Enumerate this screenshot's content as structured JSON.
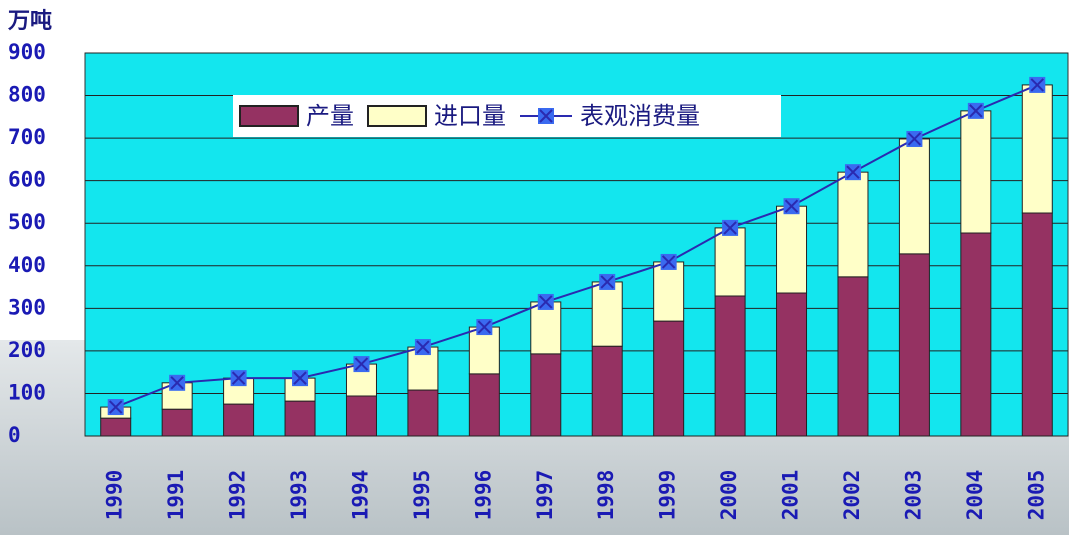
{
  "chart_data": {
    "type": "bar",
    "y_label": "万吨",
    "categories": [
      "1990",
      "1991",
      "1992",
      "1993",
      "1994",
      "1995",
      "1996",
      "1997",
      "1998",
      "1999",
      "2000",
      "2001",
      "2002",
      "2003",
      "2004",
      "2005"
    ],
    "series": [
      {
        "name": "产量",
        "type": "bar",
        "color": "#953262",
        "values": [
          42,
          63,
          75,
          82,
          94,
          108,
          146,
          193,
          211,
          270,
          329,
          336,
          374,
          428,
          477,
          524
        ]
      },
      {
        "name": "进口量",
        "type": "bar",
        "color": "#ffffc8",
        "values": [
          26,
          62,
          61,
          54,
          75,
          101,
          110,
          122,
          151,
          139,
          160,
          204,
          246,
          270,
          287,
          301
        ]
      },
      {
        "name": "表观消费量",
        "type": "line",
        "color": "#2a2ab0",
        "marker_color": "#3a6af0",
        "values": [
          68,
          125,
          136,
          136,
          169,
          209,
          256,
          315,
          362,
          409,
          489,
          540,
          620,
          698,
          764,
          825
        ]
      }
    ],
    "ylim": [
      0,
      900
    ],
    "yticks": [
      0,
      100,
      200,
      300,
      400,
      500,
      600,
      700,
      800,
      900
    ],
    "grid": true,
    "background": "#13e6ee"
  }
}
